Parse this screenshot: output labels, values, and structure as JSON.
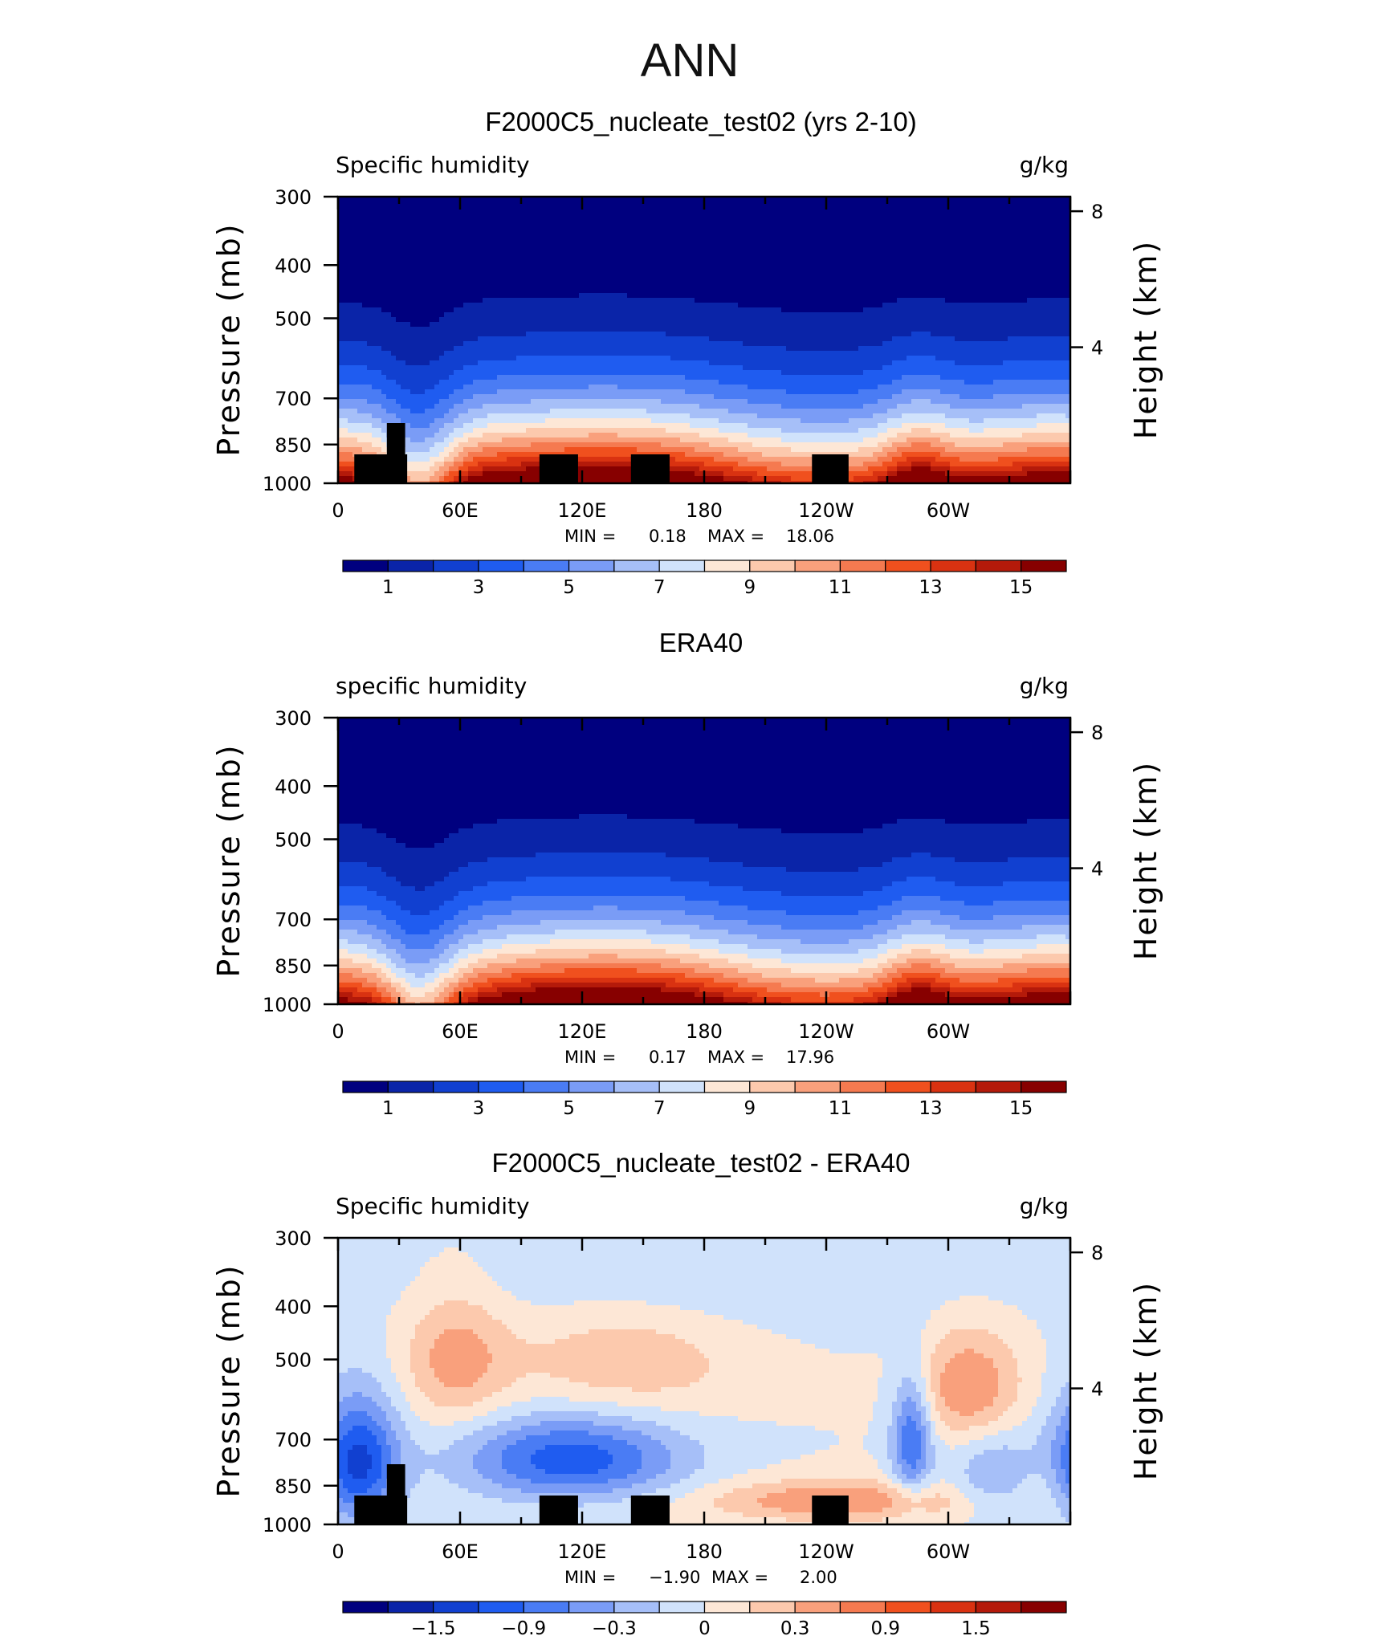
{
  "figure": {
    "title": "ANN"
  },
  "chart_data": [
    {
      "type": "heatmap",
      "title": "F2000C5_nucleate_test02 (yrs 2-10)",
      "variable_label": "Specific humidity",
      "units": "g/kg",
      "ylabel": "Pressure (mb)",
      "ylabel_right": "Height (km)",
      "xticklabels": [
        "0",
        "60E",
        "120E",
        "180",
        "120W",
        "60W"
      ],
      "yticks": [
        300,
        400,
        500,
        700,
        850,
        1000
      ],
      "yticks_right": [
        8,
        4
      ],
      "min_label": "MIN =",
      "min_value": "0.18",
      "max_label": "MAX =",
      "max_value": "18.06",
      "colorbar_labels": [
        "1",
        "3",
        "5",
        "7",
        "9",
        "11",
        "13",
        "15"
      ],
      "colorbar_range": [
        0,
        16
      ],
      "mode": "abs",
      "topography": true
    },
    {
      "type": "heatmap",
      "title": "ERA40",
      "variable_label": "specific humidity",
      "units": "g/kg",
      "ylabel": "Pressure (mb)",
      "ylabel_right": "Height (km)",
      "xticklabels": [
        "0",
        "60E",
        "120E",
        "180",
        "120W",
        "60W"
      ],
      "yticks": [
        300,
        400,
        500,
        700,
        850,
        1000
      ],
      "yticks_right": [
        8,
        4
      ],
      "min_label": "MIN =",
      "min_value": "0.17",
      "max_label": "MAX =",
      "max_value": "17.96",
      "colorbar_labels": [
        "1",
        "3",
        "5",
        "7",
        "9",
        "11",
        "13",
        "15"
      ],
      "colorbar_range": [
        0,
        16
      ],
      "mode": "abs",
      "topography": false
    },
    {
      "type": "heatmap",
      "title": "F2000C5_nucleate_test02 - ERA40",
      "variable_label": "Specific humidity",
      "units": "g/kg",
      "ylabel": "Pressure (mb)",
      "ylabel_right": "Height (km)",
      "xticklabels": [
        "0",
        "60E",
        "120E",
        "180",
        "120W",
        "60W"
      ],
      "yticks": [
        300,
        400,
        500,
        700,
        850,
        1000
      ],
      "yticks_right": [
        8,
        4
      ],
      "min_label": "MIN =",
      "min_value": "−1.90",
      "max_label": "MAX =",
      "max_value": "2.00",
      "colorbar_labels": [
        "−1.5",
        "−0.9",
        "−0.3",
        "0",
        "0.3",
        "0.9",
        "1.5"
      ],
      "colorbar_range": [
        -2.4,
        2.4
      ],
      "mode": "diff",
      "topography": true
    }
  ],
  "colors": {
    "palette": [
      "#00007f",
      "#0a24a8",
      "#1140d0",
      "#1f5cf0",
      "#4a7cf4",
      "#7a9cf6",
      "#a6bff8",
      "#d0e2fb",
      "#fde7d6",
      "#fcc9ad",
      "#f9a07c",
      "#f57a50",
      "#f0501e",
      "#d93211",
      "#b41a0a",
      "#870000"
    ],
    "topography": "#000000"
  }
}
